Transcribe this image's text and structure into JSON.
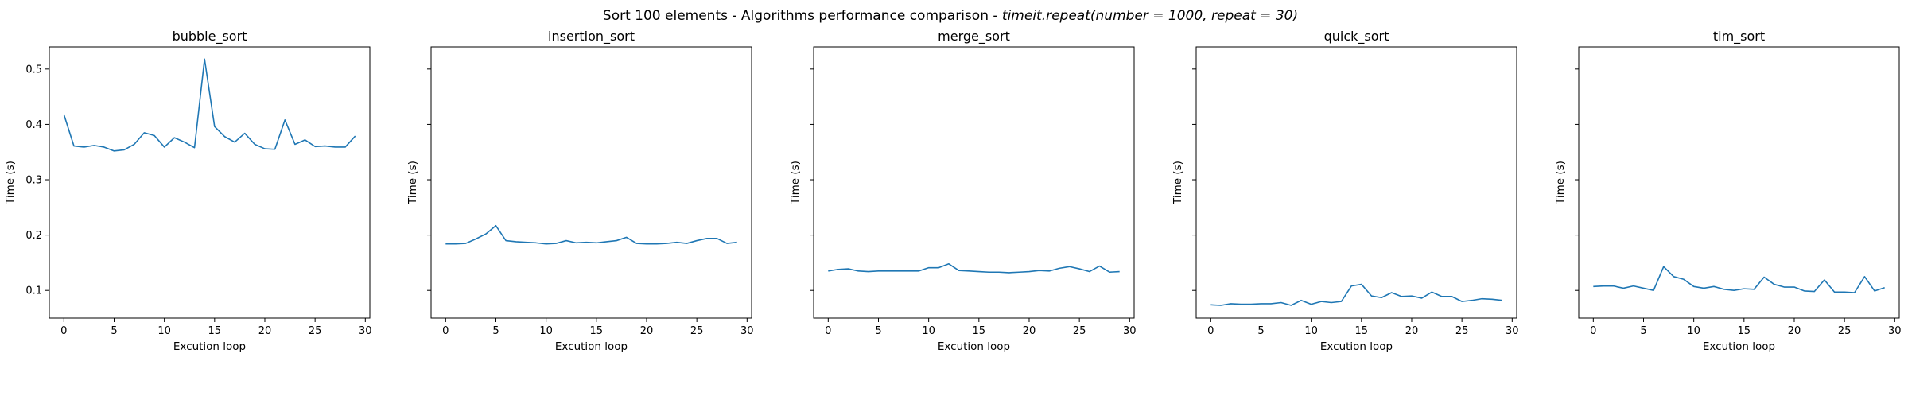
{
  "figure": {
    "title": "Sort 100 elements - Algorithms performance comparison - timeit.repeat(number = 1000, repeat = 30)",
    "title_plain": "Sort 100 elements - Algorithms performance comparison - ",
    "title_math_func": "timeit.repeat",
    "title_math_args": "(number = 1000, repeat = 30)"
  },
  "chart_data": [
    {
      "type": "line",
      "title": "bubble_sort",
      "xlabel": "Excution loop",
      "ylabel": "Time (s)",
      "xlim": [
        -1.45,
        30.45
      ],
      "ylim": [
        0.05,
        0.54
      ],
      "xticks": [
        0,
        5,
        10,
        15,
        20,
        25,
        30
      ],
      "yticks": [
        0.1,
        0.2,
        0.3,
        0.4,
        0.5
      ],
      "show_ytick_labels": true,
      "grid": false,
      "color": "#1f77b4",
      "x": [
        0,
        1,
        2,
        3,
        4,
        5,
        6,
        7,
        8,
        9,
        10,
        11,
        12,
        13,
        14,
        15,
        16,
        17,
        18,
        19,
        20,
        21,
        22,
        23,
        24,
        25,
        26,
        27,
        28,
        29
      ],
      "y": [
        0.418,
        0.361,
        0.359,
        0.362,
        0.359,
        0.352,
        0.354,
        0.364,
        0.385,
        0.38,
        0.359,
        0.376,
        0.368,
        0.358,
        0.518,
        0.396,
        0.378,
        0.368,
        0.384,
        0.364,
        0.356,
        0.355,
        0.408,
        0.364,
        0.372,
        0.36,
        0.361,
        0.359,
        0.359,
        0.379
      ]
    },
    {
      "type": "line",
      "title": "insertion_sort",
      "xlabel": "Excution loop",
      "ylabel": "Time (s)",
      "xlim": [
        -1.45,
        30.45
      ],
      "ylim": [
        0.05,
        0.54
      ],
      "xticks": [
        0,
        5,
        10,
        15,
        20,
        25,
        30
      ],
      "yticks": [
        0.1,
        0.2,
        0.3,
        0.4,
        0.5
      ],
      "show_ytick_labels": false,
      "grid": false,
      "color": "#1f77b4",
      "x": [
        0,
        1,
        2,
        3,
        4,
        5,
        6,
        7,
        8,
        9,
        10,
        11,
        12,
        13,
        14,
        15,
        16,
        17,
        18,
        19,
        20,
        21,
        22,
        23,
        24,
        25,
        26,
        27,
        28,
        29
      ],
      "y": [
        0.184,
        0.184,
        0.185,
        0.193,
        0.202,
        0.217,
        0.19,
        0.188,
        0.187,
        0.186,
        0.184,
        0.185,
        0.19,
        0.186,
        0.187,
        0.186,
        0.188,
        0.19,
        0.196,
        0.185,
        0.184,
        0.184,
        0.185,
        0.187,
        0.185,
        0.19,
        0.194,
        0.194,
        0.185,
        0.187
      ]
    },
    {
      "type": "line",
      "title": "merge_sort",
      "xlabel": "Excution loop",
      "ylabel": "Time (s)",
      "xlim": [
        -1.45,
        30.45
      ],
      "ylim": [
        0.05,
        0.54
      ],
      "xticks": [
        0,
        5,
        10,
        15,
        20,
        25,
        30
      ],
      "yticks": [
        0.1,
        0.2,
        0.3,
        0.4,
        0.5
      ],
      "show_ytick_labels": false,
      "grid": false,
      "color": "#1f77b4",
      "x": [
        0,
        1,
        2,
        3,
        4,
        5,
        6,
        7,
        8,
        9,
        10,
        11,
        12,
        13,
        14,
        15,
        16,
        17,
        18,
        19,
        20,
        21,
        22,
        23,
        24,
        25,
        26,
        27,
        28,
        29
      ],
      "y": [
        0.135,
        0.138,
        0.139,
        0.135,
        0.134,
        0.135,
        0.135,
        0.135,
        0.135,
        0.135,
        0.141,
        0.141,
        0.148,
        0.136,
        0.135,
        0.134,
        0.133,
        0.133,
        0.132,
        0.133,
        0.134,
        0.136,
        0.135,
        0.14,
        0.143,
        0.139,
        0.134,
        0.144,
        0.133,
        0.134
      ]
    },
    {
      "type": "line",
      "title": "quick_sort",
      "xlabel": "Excution loop",
      "ylabel": "Time (s)",
      "xlim": [
        -1.45,
        30.45
      ],
      "ylim": [
        0.05,
        0.54
      ],
      "xticks": [
        0,
        5,
        10,
        15,
        20,
        25,
        30
      ],
      "yticks": [
        0.1,
        0.2,
        0.3,
        0.4,
        0.5
      ],
      "show_ytick_labels": false,
      "grid": false,
      "color": "#1f77b4",
      "x": [
        0,
        1,
        2,
        3,
        4,
        5,
        6,
        7,
        8,
        9,
        10,
        11,
        12,
        13,
        14,
        15,
        16,
        17,
        18,
        19,
        20,
        21,
        22,
        23,
        24,
        25,
        26,
        27,
        28,
        29
      ],
      "y": [
        0.074,
        0.073,
        0.076,
        0.075,
        0.075,
        0.076,
        0.076,
        0.078,
        0.073,
        0.082,
        0.075,
        0.08,
        0.078,
        0.08,
        0.108,
        0.111,
        0.09,
        0.087,
        0.096,
        0.089,
        0.09,
        0.086,
        0.097,
        0.089,
        0.089,
        0.08,
        0.082,
        0.085,
        0.084,
        0.082
      ]
    },
    {
      "type": "line",
      "title": "tim_sort",
      "xlabel": "Excution loop",
      "ylabel": "Time (s)",
      "xlim": [
        -1.45,
        30.45
      ],
      "ylim": [
        0.05,
        0.54
      ],
      "xticks": [
        0,
        5,
        10,
        15,
        20,
        25,
        30
      ],
      "yticks": [
        0.1,
        0.2,
        0.3,
        0.4,
        0.5
      ],
      "show_ytick_labels": false,
      "grid": false,
      "color": "#1f77b4",
      "x": [
        0,
        1,
        2,
        3,
        4,
        5,
        6,
        7,
        8,
        9,
        10,
        11,
        12,
        13,
        14,
        15,
        16,
        17,
        18,
        19,
        20,
        21,
        22,
        23,
        24,
        25,
        26,
        27,
        28,
        29
      ],
      "y": [
        0.107,
        0.108,
        0.108,
        0.104,
        0.108,
        0.104,
        0.1,
        0.143,
        0.125,
        0.12,
        0.107,
        0.104,
        0.107,
        0.102,
        0.1,
        0.103,
        0.102,
        0.124,
        0.111,
        0.106,
        0.106,
        0.099,
        0.098,
        0.119,
        0.097,
        0.097,
        0.096,
        0.125,
        0.099,
        0.105
      ]
    }
  ]
}
